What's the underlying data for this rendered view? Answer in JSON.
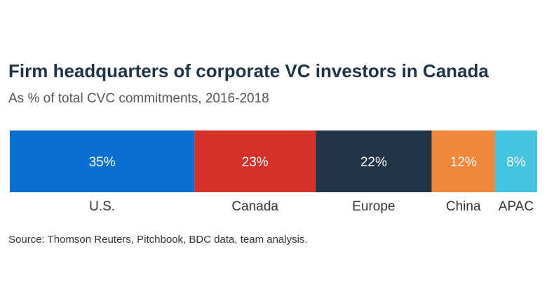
{
  "title": "Firm headquarters of corporate VC investors in Canada",
  "subtitle": "As % of total CVC commitments, 2016-2018",
  "source": "Source: Thomson Reuters, Pitchbook, BDC data, team analysis.",
  "chart_data": {
    "type": "bar",
    "stacked": true,
    "orientation": "horizontal",
    "unit": "%",
    "categories": [
      "U.S.",
      "Canada",
      "Europe",
      "China",
      "APAC"
    ],
    "values": [
      35,
      23,
      22,
      12,
      8
    ],
    "value_labels": [
      "35%",
      "23%",
      "22%",
      "12%",
      "8%"
    ],
    "colors": [
      "#0a6fd0",
      "#d6302b",
      "#223548",
      "#f0873a",
      "#45c4e0"
    ],
    "total": 100
  }
}
